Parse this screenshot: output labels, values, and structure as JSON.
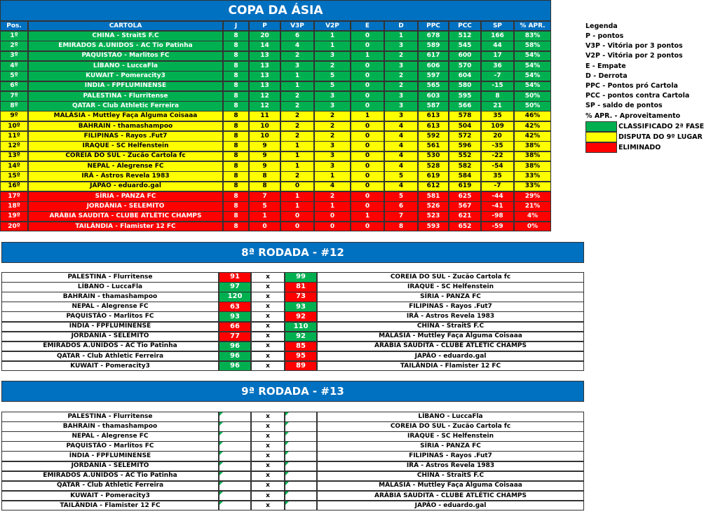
{
  "standings": {
    "title": "COPA DA ÁSIA",
    "header_color": "#0070c0",
    "headers": [
      "Pos.",
      "CARTOLA",
      "J",
      "P",
      "V3P",
      "V2P",
      "E",
      "D",
      "PPC",
      "PCC",
      "SP",
      "% APR."
    ],
    "groups": [
      {
        "rows": [
          [
            "1º",
            "CHINA - StraitS F.C",
            "8",
            "20",
            "6",
            "1",
            "0",
            "1",
            "678",
            "512",
            "166",
            "83%"
          ],
          [
            "2º",
            "EMIRADOS A.UNIDOS - AC Tio Patinha",
            "8",
            "14",
            "4",
            "1",
            "0",
            "3",
            "589",
            "545",
            "44",
            "58%"
          ],
          [
            "3º",
            "PAQUISTÃO - Marlitos FC",
            "8",
            "13",
            "2",
            "3",
            "1",
            "2",
            "617",
            "600",
            "17",
            "54%"
          ],
          [
            "4º",
            "LÍBANO - LuccaFla",
            "8",
            "13",
            "3",
            "2",
            "0",
            "3",
            "606",
            "570",
            "36",
            "54%"
          ],
          [
            "5º",
            "KUWAIT - Pomeracity3",
            "8",
            "13",
            "1",
            "5",
            "0",
            "2",
            "597",
            "604",
            "-7",
            "54%"
          ],
          [
            "6º",
            "ÍNDIA - FPFLUMINENSE",
            "8",
            "13",
            "1",
            "5",
            "0",
            "2",
            "565",
            "580",
            "-15",
            "54%"
          ],
          [
            "7º",
            "PALESTINA - Flurritense",
            "8",
            "12",
            "2",
            "3",
            "0",
            "3",
            "603",
            "595",
            "8",
            "50%"
          ],
          [
            "8º",
            "QATAR - Club Athletic Ferreira",
            "8",
            "12",
            "2",
            "3",
            "0",
            "3",
            "587",
            "566",
            "21",
            "50%"
          ]
        ]
      },
      {
        "rows": [
          [
            "9º",
            "MALÁSIA - Muttley Faça Alguma Coisaaa",
            "8",
            "11",
            "2",
            "2",
            "1",
            "3",
            "613",
            "578",
            "35",
            "46%"
          ],
          [
            "10º",
            "BAHRAIN - thamashampoo",
            "8",
            "10",
            "2",
            "2",
            "0",
            "4",
            "613",
            "504",
            "109",
            "42%"
          ],
          [
            "11º",
            "FILIPINAS - Rayos .Fut7",
            "8",
            "10",
            "2",
            "2",
            "0",
            "4",
            "592",
            "572",
            "20",
            "42%"
          ],
          [
            "12º",
            "IRAQUE - SC Helfenstein",
            "8",
            "9",
            "1",
            "3",
            "0",
            "4",
            "561",
            "596",
            "-35",
            "38%"
          ],
          [
            "13º",
            "COREIA DO SUL - Zucão Cartola fc",
            "8",
            "9",
            "1",
            "3",
            "0",
            "4",
            "530",
            "552",
            "-22",
            "38%"
          ],
          [
            "14º",
            "NEPAL - Alegrense FC",
            "8",
            "9",
            "1",
            "3",
            "0",
            "4",
            "528",
            "582",
            "-54",
            "38%"
          ],
          [
            "15º",
            "IRÃ - Astros Revela 1983",
            "8",
            "8",
            "2",
            "1",
            "0",
            "5",
            "619",
            "584",
            "35",
            "33%"
          ],
          [
            "16º",
            "JAPÃO - eduardo.gal",
            "8",
            "8",
            "0",
            "4",
            "0",
            "4",
            "612",
            "619",
            "-7",
            "33%"
          ]
        ]
      },
      {
        "rows": [
          [
            "17º",
            "SÍRIA - PANZA FC",
            "8",
            "7",
            "1",
            "2",
            "0",
            "5",
            "581",
            "625",
            "-44",
            "29%"
          ],
          [
            "18º",
            "JORDÂNIA - SELEMITO",
            "8",
            "5",
            "1",
            "1",
            "0",
            "6",
            "526",
            "567",
            "-41",
            "21%"
          ],
          [
            "19º",
            "ARÁBIA SAUDITA - CLUBE ATLÉTIC CHAMPS",
            "8",
            "1",
            "0",
            "0",
            "1",
            "7",
            "523",
            "621",
            "-98",
            "4%"
          ],
          [
            "20º",
            "TAILÂNDIA - Flamister 12 FC",
            "8",
            "0",
            "0",
            "0",
            "0",
            "8",
            "593",
            "652",
            "-59",
            "0%"
          ]
        ]
      }
    ]
  },
  "legend": {
    "title": "Legenda",
    "items": [
      "P - pontos",
      "V3P - Vitória por 3 pontos",
      "V2P - Vitória por 2 pontos",
      "E - Empate",
      "D - Derrota",
      "PPC - Pontos pró Cartola",
      "PCC - pontos contra Cartola",
      "SP - saldo de pontos",
      "% APR. - Aproveitamento"
    ],
    "zones": [
      {
        "label": "CLASSIFICADO 2ª FASE",
        "color": "#00b050",
        "text_color": "#ffffff"
      },
      {
        "label": "DISPUTA DO 9º LUGAR",
        "color": "#ffff00",
        "text_color": "#000000"
      },
      {
        "label": "ELIMINADO",
        "color": "#ff0000",
        "text_color": "#ffffff"
      }
    ]
  },
  "score_colors": {
    "win": "#00b050",
    "loss": "#ff0000"
  },
  "rounds": [
    {
      "title": "8ª RODADA - #12",
      "separator": "x",
      "matches": [
        {
          "home": "PALESTINA - Flurritense",
          "home_score": 91,
          "away_score": 99,
          "away": "COREIA DO SUL - Zucão Cartola fc"
        },
        {
          "home": "LÍBANO - LuccaFla",
          "home_score": 97,
          "away_score": 81,
          "away": "IRAQUE - SC Helfenstein"
        },
        {
          "home": "BAHRAIN - thamashampoo",
          "home_score": 120,
          "away_score": 73,
          "away": "SÍRIA - PANZA FC"
        },
        {
          "home": "NEPAL - Alegrense FC",
          "home_score": 63,
          "away_score": 93,
          "away": "FILIPINAS - Rayos .Fut7"
        },
        {
          "home": "PAQUISTÃO - Marlitos FC",
          "home_score": 93,
          "away_score": 92,
          "away": "IRÃ - Astros Revela 1983"
        },
        {
          "home": "ÍNDIA - FPFLUMINENSE",
          "home_score": 66,
          "away_score": 110,
          "away": "CHINA - StraitS F.C"
        },
        {
          "home": "JORDÂNIA - SELEMITO",
          "home_score": 77,
          "away_score": 92,
          "away": "MALÁSIA - Muttley Faça Alguma Coisaaa"
        },
        {
          "home": "EMIRADOS A.UNIDOS - AC Tio Patinha",
          "home_score": 96,
          "away_score": 85,
          "away": "ARÁBIA SAUDITA - CLUBE ATLÉTIC CHAMPS"
        },
        {
          "home": "QATAR - Club Athletic Ferreira",
          "home_score": 96,
          "away_score": 95,
          "away": "JAPÃO - eduardo.gal"
        },
        {
          "home": "KUWAIT - Pomeracity3",
          "home_score": 96,
          "away_score": 89,
          "away": "TAILÂNDIA - Flamister 12 FC"
        }
      ]
    },
    {
      "title": "9ª RODADA - #13",
      "separator": "x",
      "matches": [
        {
          "home": "PALESTINA - Flurritense",
          "away": "LÍBANO - LuccaFla"
        },
        {
          "home": "BAHRAIN - thamashampoo",
          "away": "COREIA DO SUL - Zucão Cartola fc"
        },
        {
          "home": "NEPAL - Alegrense FC",
          "away": "IRAQUE - SC Helfenstein"
        },
        {
          "home": "PAQUISTÃO - Marlitos FC",
          "away": "SÍRIA - PANZA FC"
        },
        {
          "home": "ÍNDIA - FPFLUMINENSE",
          "away": "FILIPINAS - Rayos .Fut7"
        },
        {
          "home": "JORDÂNIA - SELEMITO",
          "away": "IRÃ - Astros Revela 1983"
        },
        {
          "home": "EMIRADOS A.UNIDOS - AC Tio Patinha",
          "away": "CHINA - StraitS F.C"
        },
        {
          "home": "QATAR - Club Athletic Ferreira",
          "away": "MALÁSIA - Muttley Faça Alguma Coisaaa"
        },
        {
          "home": "KUWAIT - Pomeracity3",
          "away": "ARÁBIA SAUDITA - CLUBE ATLÉTIC CHAMPS"
        },
        {
          "home": "TAILÂNDIA - Flamister 12 FC",
          "away": "JAPÃO - eduardo.gal"
        }
      ]
    }
  ]
}
